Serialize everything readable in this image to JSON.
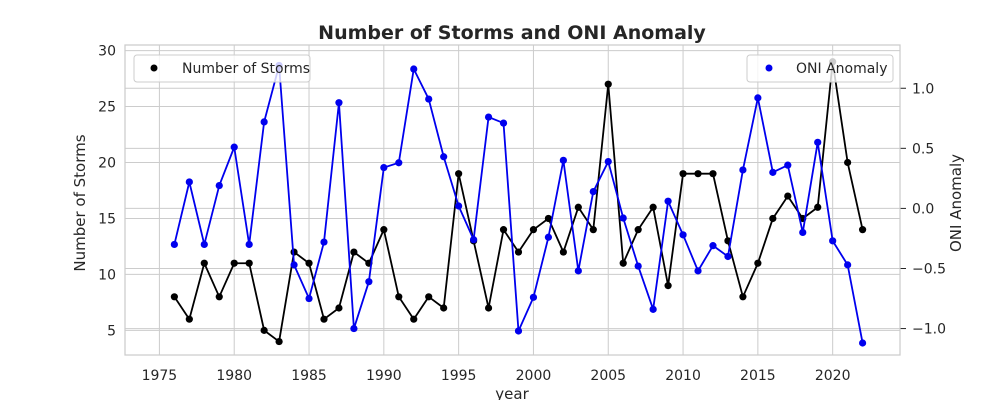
{
  "chart_data": {
    "type": "line",
    "title": "Number of Storms and ONI Anomaly",
    "xlabel": "year",
    "ylabel": "Number of Storms",
    "ylabel_right": "ONI Anomaly",
    "xlim": [
      1972.7,
      2024.5
    ],
    "ylim": [
      2.8,
      30.5
    ],
    "ylim_right": [
      -1.22,
      1.36
    ],
    "x_ticks": [
      "1975",
      "1980",
      "1985",
      "1990",
      "1995",
      "2000",
      "2005",
      "2010",
      "2015",
      "2020"
    ],
    "y_ticks": [
      "5",
      "10",
      "15",
      "20",
      "25",
      "30"
    ],
    "y_ticks_right": [
      "−1.0",
      "−0.5",
      "0.0",
      "0.5",
      "1.0"
    ],
    "grid": true,
    "x": [
      1976,
      1977,
      1978,
      1979,
      1980,
      1981,
      1982,
      1983,
      1984,
      1985,
      1986,
      1987,
      1988,
      1989,
      1990,
      1991,
      1992,
      1993,
      1994,
      1995,
      1996,
      1997,
      1998,
      1999,
      2000,
      2001,
      2002,
      2003,
      2004,
      2005,
      2006,
      2007,
      2008,
      2009,
      2010,
      2011,
      2012,
      2013,
      2014,
      2015,
      2016,
      2017,
      2018,
      2019,
      2020,
      2021,
      2022
    ],
    "series": [
      {
        "name": "Number of Storms",
        "axis": "left",
        "color": "#000000",
        "legend_position": "top-left",
        "values": [
          8,
          6,
          11,
          8,
          11,
          11,
          5,
          4,
          12,
          11,
          6,
          7,
          12,
          11,
          14,
          8,
          6,
          8,
          7,
          19,
          13,
          7,
          14,
          12,
          14,
          15,
          12,
          16,
          14,
          27,
          11,
          14,
          16,
          9,
          19,
          19,
          19,
          13,
          8,
          11,
          15,
          17,
          15,
          16,
          29,
          20,
          14
        ]
      },
      {
        "name": "ONI Anomaly",
        "axis": "right",
        "color": "#0000ee",
        "legend_position": "top-right",
        "values": [
          -0.3,
          0.22,
          -0.3,
          0.19,
          0.51,
          -0.3,
          0.72,
          1.19,
          -0.47,
          -0.75,
          -0.28,
          0.88,
          -1.0,
          -0.61,
          0.34,
          0.38,
          1.16,
          0.91,
          0.43,
          0.02,
          -0.26,
          0.76,
          0.71,
          -1.02,
          -0.74,
          -0.24,
          0.4,
          -0.52,
          0.14,
          0.39,
          -0.08,
          -0.48,
          -0.84,
          0.06,
          -0.22,
          -0.52,
          -0.31,
          -0.4,
          0.32,
          0.92,
          0.3,
          0.36,
          -0.2,
          0.55,
          -0.27,
          -0.47,
          -1.12
        ]
      }
    ]
  }
}
